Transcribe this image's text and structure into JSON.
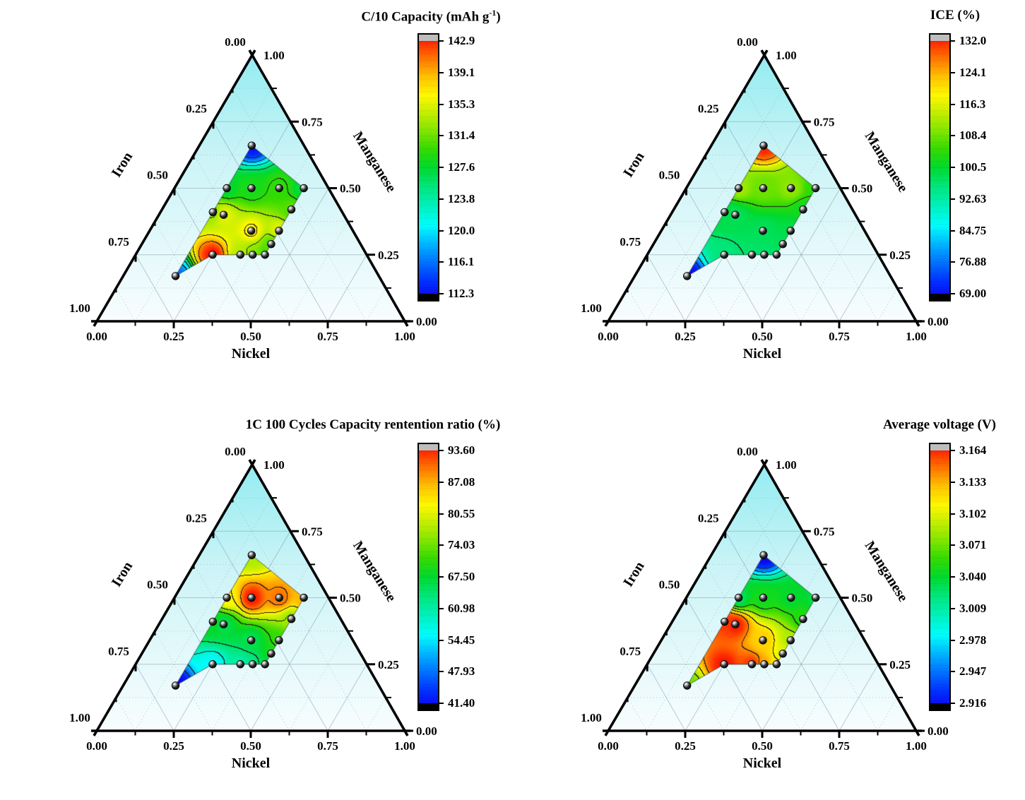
{
  "page": {
    "background": "#ffffff"
  },
  "colors": {
    "axis": "#000000",
    "grid": "#7e9aa8",
    "triangle_top": "#93ecf1",
    "triangle_mid": "#cdf4f7",
    "triangle_bottom": "#f8fdfe",
    "colorbar_top_cap": "#bdbdbd",
    "colorbar_bottom_cap": "#000000",
    "contour_line": "#1a1a1a",
    "point_fill": "#000000",
    "point_highlight": "#ffffff"
  },
  "palette": [
    [
      0.0,
      "#0d00ea"
    ],
    [
      0.07,
      "#0030ff"
    ],
    [
      0.14,
      "#0070ff"
    ],
    [
      0.21,
      "#00b4ff"
    ],
    [
      0.28,
      "#00fdfd"
    ],
    [
      0.35,
      "#00f2c0"
    ],
    [
      0.43,
      "#00e67a"
    ],
    [
      0.5,
      "#00d92e"
    ],
    [
      0.57,
      "#35db00"
    ],
    [
      0.64,
      "#85e600"
    ],
    [
      0.71,
      "#c8ef00"
    ],
    [
      0.77,
      "#fef800"
    ],
    [
      0.84,
      "#ffc300"
    ],
    [
      0.9,
      "#ff8000"
    ],
    [
      0.96,
      "#ff3a00"
    ],
    [
      1.0,
      "#f50000"
    ]
  ],
  "ternary": {
    "axis_titles": {
      "left": "Iron",
      "right": "Manganese",
      "bottom": "Nickel"
    },
    "left_tick_labels": [
      "0.00",
      "0.25",
      "0.50",
      "0.75",
      "1.00"
    ],
    "right_tick_labels": [
      "1.00",
      "0.75",
      "0.50",
      "0.25",
      "0.00"
    ],
    "bottom_tick_labels": [
      "0.00",
      "0.25",
      "0.50",
      "0.75",
      "1.00"
    ],
    "points": [
      [
        0.17,
        0.17,
        0.66
      ],
      [
        0.17,
        0.33,
        0.5
      ],
      [
        0.25,
        0.25,
        0.5
      ],
      [
        0.34,
        0.16,
        0.5
      ],
      [
        0.42,
        0.08,
        0.5
      ],
      [
        0.17,
        0.42,
        0.41
      ],
      [
        0.21,
        0.39,
        0.4
      ],
      [
        0.42,
        0.16,
        0.42
      ],
      [
        0.33,
        0.33,
        0.34
      ],
      [
        0.42,
        0.24,
        0.34
      ],
      [
        0.42,
        0.29,
        0.29
      ],
      [
        0.25,
        0.5,
        0.25
      ],
      [
        0.34,
        0.41,
        0.25
      ],
      [
        0.38,
        0.37,
        0.25
      ],
      [
        0.42,
        0.33,
        0.25
      ],
      [
        0.17,
        0.66,
        0.17
      ]
    ],
    "hull": [
      0,
      4,
      7,
      9,
      10,
      14,
      13,
      12,
      11,
      15,
      5,
      1
    ]
  },
  "chart_data": [
    {
      "type": "ternary_contour",
      "title_pre": "C/10 Capacity (mAh g",
      "title_sup": "-1",
      "title_post": ")",
      "colorbar": {
        "min": 112.3,
        "max": 142.9,
        "tick_labels": [
          "142.9",
          "139.1",
          "135.3",
          "131.4",
          "127.6",
          "123.8",
          "120.0",
          "116.1",
          "112.3"
        ]
      },
      "values": [
        113.3,
        127.5,
        128.5,
        129.5,
        127.0,
        132.5,
        135.0,
        130.5,
        136.5,
        135.0,
        130.5,
        142.5,
        133.5,
        132.0,
        130.0,
        116.5
      ]
    },
    {
      "type": "ternary_contour",
      "title_pre": "ICE (%)",
      "title_sup": "",
      "title_post": "",
      "colorbar": {
        "min": 69.0,
        "max": 132.0,
        "tick_labels": [
          "132.0",
          "124.1",
          "116.3",
          "108.4",
          "100.5",
          "92.63",
          "84.75",
          "76.88",
          "69.00"
        ]
      },
      "values": [
        130.5,
        111,
        108,
        110,
        104,
        99,
        98,
        102,
        98,
        99,
        98,
        96,
        97,
        97,
        97.5,
        70
      ]
    },
    {
      "type": "ternary_contour",
      "title_pre": "1C 100 Cycles Capacity rentention ratio (%)",
      "title_sup": "",
      "title_post": "",
      "colorbar": {
        "min": 41.4,
        "max": 93.6,
        "tick_labels": [
          "93.60",
          "87.08",
          "80.55",
          "74.03",
          "67.50",
          "60.98",
          "54.45",
          "47.93",
          "41.40"
        ]
      },
      "values": [
        77,
        82,
        92.8,
        89,
        86,
        68,
        66,
        76,
        66,
        71,
        69,
        56,
        61,
        63,
        66,
        42
      ]
    },
    {
      "type": "ternary_contour",
      "title_pre": "Average voltage (V)",
      "title_sup": "",
      "title_post": "",
      "colorbar": {
        "min": 2.916,
        "max": 3.164,
        "tick_labels": [
          "3.164",
          "3.133",
          "3.102",
          "3.071",
          "3.040",
          "3.009",
          "2.978",
          "2.947",
          "2.916"
        ]
      },
      "values": [
        2.918,
        3.03,
        3.045,
        3.04,
        3.035,
        3.155,
        3.16,
        3.05,
        3.12,
        3.085,
        3.1,
        3.16,
        3.155,
        3.13,
        3.11,
        3.07
      ]
    }
  ]
}
